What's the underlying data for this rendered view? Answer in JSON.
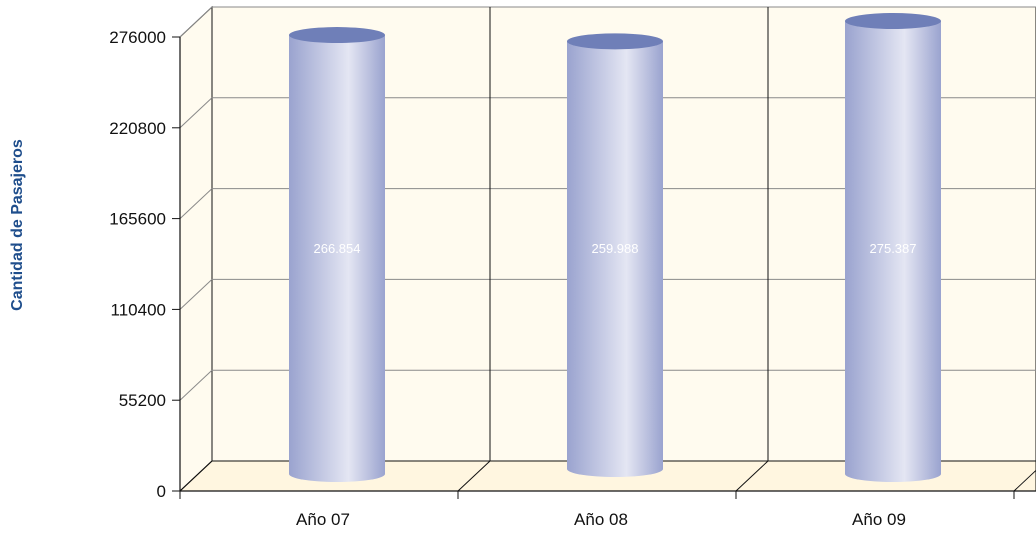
{
  "chart_data": {
    "type": "bar",
    "title": "",
    "xlabel": "",
    "ylabel": "Cantidad de Pasajeros",
    "categories": [
      "Año 07",
      "Año 08",
      "Año 09"
    ],
    "values": [
      266854,
      259988,
      275387
    ],
    "value_labels": [
      "266.854",
      "259.988",
      "275.387"
    ],
    "yticks": [
      "0",
      "55200",
      "110400",
      "165600",
      "220800",
      "276000"
    ],
    "ylim": [
      0,
      276000
    ],
    "grid": true,
    "legend": "none",
    "style": "3d-cylinder"
  },
  "colors": {
    "ylabel": "#1f4e8c",
    "plot_wall": "#fffbef",
    "plot_floor": "#fff6e0",
    "grid": "#8a8a8a",
    "axis": "#111111",
    "cylinder_dark": "#9aa3cf",
    "cylinder_light": "#e4e6f3",
    "cylinder_top": "#6f7fb8"
  }
}
